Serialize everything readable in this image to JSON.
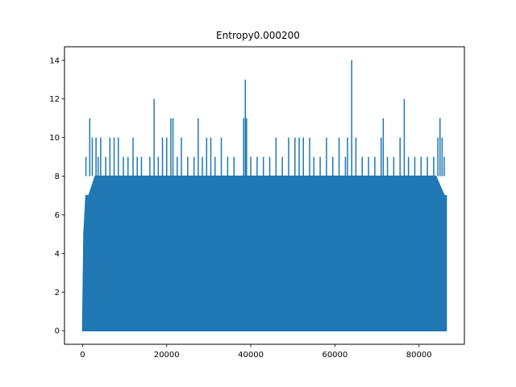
{
  "chart_data": {
    "type": "line",
    "title": "Entropy0.000200",
    "xlabel": "",
    "ylabel": "",
    "xlim": [
      -4300,
      90800
    ],
    "ylim": [
      -0.7,
      14.7
    ],
    "x_ticks": [
      0,
      20000,
      40000,
      60000,
      80000
    ],
    "y_ticks": [
      0,
      2,
      4,
      6,
      8,
      10,
      12,
      14
    ],
    "grid": false,
    "legend": "none",
    "series": [
      {
        "color": "#1f77b4",
        "x_range": [
          0,
          86500
        ],
        "min_value": 0,
        "typical_max": 8,
        "envelope_x": [
          0,
          300,
          800,
          1500,
          3000,
          10000,
          20000,
          40000,
          60000,
          80000,
          84000,
          86000,
          86500
        ],
        "envelope_y": [
          0,
          5,
          7,
          7,
          8,
          8,
          8,
          8,
          8,
          8,
          8,
          7,
          7
        ],
        "peaks_x": [
          800,
          1700,
          2300,
          3200,
          3700,
          4300,
          5500,
          6500,
          7500,
          8500,
          9700,
          10800,
          12000,
          13000,
          14000,
          16000,
          17000,
          18000,
          19000,
          20000,
          21000,
          21500,
          22500,
          23500,
          25000,
          26500,
          27500,
          28500,
          29500,
          30500,
          31500,
          33000,
          34500,
          36000,
          38300,
          38700,
          39000,
          40000,
          41500,
          43000,
          44500,
          46000,
          47500,
          49000,
          50500,
          51500,
          52500,
          54000,
          55000,
          56500,
          58000,
          59500,
          61000,
          62500,
          63000,
          64000,
          65000,
          66500,
          68000,
          69500,
          71000,
          71500,
          72500,
          74000,
          75500,
          76500,
          77500,
          79000,
          80500,
          82000,
          83500,
          84500,
          85000,
          85500,
          86000
        ],
        "peaks_y": [
          9,
          11,
          10,
          10,
          9,
          10,
          9,
          10,
          10,
          10,
          9,
          9,
          10,
          9,
          9,
          9,
          12,
          9,
          10,
          10,
          11,
          11,
          9,
          10,
          9,
          9,
          11,
          9,
          10,
          10,
          9,
          10,
          9,
          9,
          11,
          13,
          11,
          9,
          9,
          9,
          9,
          10,
          9,
          10,
          10,
          10,
          10,
          10,
          9,
          9,
          10,
          9,
          10,
          9,
          10,
          14,
          10,
          9,
          9,
          9,
          10,
          11,
          9,
          9,
          10,
          12,
          9,
          9,
          9,
          9,
          9,
          10,
          11,
          10,
          9
        ]
      }
    ]
  }
}
